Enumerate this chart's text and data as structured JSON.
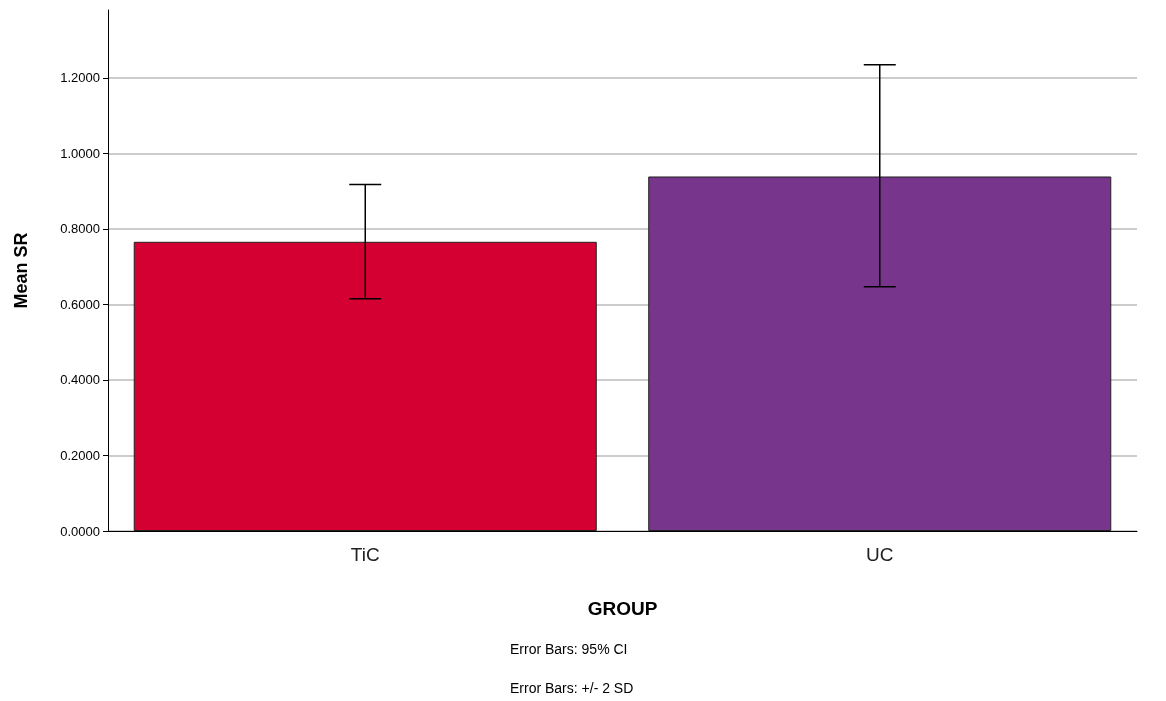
{
  "chart_data": {
    "type": "bar",
    "xlabel": "GROUP",
    "ylabel": "Mean SR",
    "categories": [
      "TiC",
      "UC"
    ],
    "values": [
      0.766,
      0.939
    ],
    "colors": [
      "#d50032",
      "#77368b"
    ],
    "errors": [
      [
        0.615,
        0.918
      ],
      [
        0.647,
        1.235
      ]
    ],
    "ylim": [
      0,
      1.38
    ],
    "yticks": [
      {
        "value": 0,
        "label": "0.0000"
      },
      {
        "value": 0.2,
        "label": "0.2000"
      },
      {
        "value": 0.4,
        "label": "0.4000"
      },
      {
        "value": 0.6,
        "label": "0.6000"
      },
      {
        "value": 0.8,
        "label": "0.8000"
      },
      {
        "value": 1,
        "label": "1.0000"
      },
      {
        "value": 1.2,
        "label": "1.2000"
      }
    ],
    "grid": "y",
    "annotations": [
      "Error Bars: 95% CI",
      "Error Bars: +/- 2 SD"
    ]
  }
}
